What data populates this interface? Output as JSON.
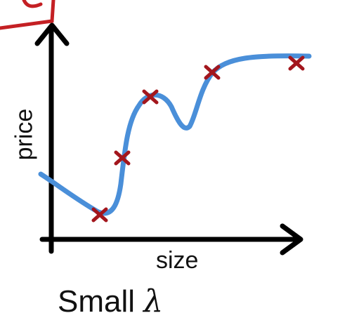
{
  "labels": {
    "x_axis": "size",
    "y_axis": "price",
    "caption": "Small",
    "lambda_symbol": "λ"
  },
  "colors": {
    "curve": "#4a8fd9",
    "points": "#a3161d",
    "axes": "#000000",
    "corner_annotation": "#c42024"
  }
}
